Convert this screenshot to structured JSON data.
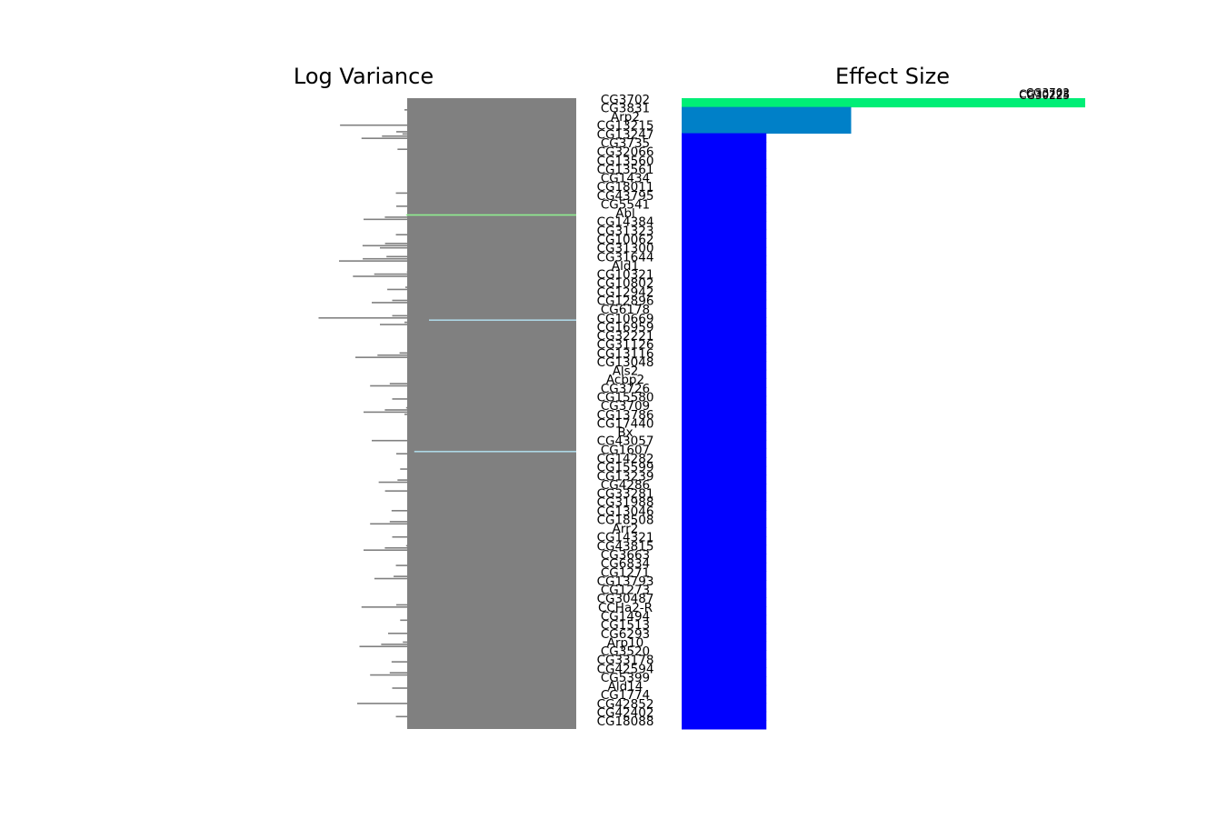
{
  "chart_data": [
    {
      "type": "bar",
      "orientation": "horizontal",
      "title": "Log Variance",
      "direction": "right-to-left",
      "axes_visible": false,
      "bar_color": "#808080",
      "highlight_colors": {
        "Abl": "#90ee90",
        "CG10669": "#add8e6",
        "CG1607": "#add8e6"
      }
    },
    {
      "type": "bar",
      "orientation": "horizontal",
      "title": "Effect Size",
      "direction": "left-to-right",
      "axes_visible": false,
      "top_annotations": [
        "CG3702",
        "CG30223",
        "CG30225"
      ],
      "segments": [
        {
          "color": "#00ee76",
          "value": 1.0,
          "rows": 1
        },
        {
          "color": "#0080c8",
          "value": 0.42,
          "rows": 3
        },
        {
          "color": "#0000ff",
          "value": 0.21,
          "rows": "rest"
        }
      ]
    }
  ],
  "genes": [
    "CG3702",
    "CG3831",
    "Arp2",
    "CG13215",
    "CG13247",
    "CG3735",
    "CG32066",
    "CG13560",
    "CG13561",
    "CG1434",
    "CG18011",
    "CG43795",
    "CG5541",
    "Abl",
    "CG14384",
    "CG31323",
    "CG10062",
    "CG31300",
    "CG31644",
    "Ald1",
    "CG10321",
    "CG10802",
    "CG12942",
    "CG12896",
    "CG6178",
    "CG10669",
    "CG16959",
    "CG32221",
    "CG31126",
    "CG13116",
    "CG13048",
    "Als2",
    "Acbp2",
    "CG3726",
    "CG15580",
    "CG3709",
    "CG13786",
    "CG17440",
    "Bx",
    "CG43057",
    "CG1607",
    "CG14282",
    "CG15599",
    "CG13239",
    "CG4286",
    "CG33281",
    "CG31988",
    "CG13046",
    "CG18508",
    "Arr2",
    "CG14321",
    "CG43815",
    "CG3663",
    "CG6834",
    "CG1271",
    "CG13793",
    "CG1273",
    "CG30487",
    "CCHa2-R",
    "CG1494",
    "CG1513",
    "CG6293",
    "Arp10",
    "CG3520",
    "CG33178",
    "CG42594",
    "CG5399",
    "Ald14",
    "CG1774",
    "CG42852",
    "CG42402",
    "CG18088"
  ],
  "log_variance": [
    0.46,
    0.42,
    0.41,
    0.55,
    0.5,
    0.46,
    0.4,
    0.37,
    0.4,
    0.35,
    0.42,
    0.39,
    0.44,
    0.52,
    0.38,
    0.42,
    0.55,
    0.48,
    0.58,
    0.46,
    0.52,
    0.44,
    0.41,
    0.5,
    0.45,
    0.6,
    0.36,
    0.43,
    0.4,
    0.54,
    0.42,
    0.35,
    0.48,
    0.38,
    0.45,
    0.52,
    0.4,
    0.36,
    0.43,
    0.5,
    0.44,
    0.38,
    0.41,
    0.46,
    0.55,
    0.4,
    0.37,
    0.43,
    0.48,
    0.39,
    0.45,
    0.52,
    0.36,
    0.42,
    0.47,
    0.4,
    0.38,
    0.44,
    0.5,
    0.41,
    0.35,
    0.46,
    0.53,
    0.39,
    0.43,
    0.48,
    0.37,
    0.45,
    0.4,
    0.51,
    0.42,
    0.38
  ],
  "effect_size": [
    1.0,
    0.42,
    0.42,
    0.42,
    0.21,
    0.21,
    0.21,
    0.21,
    0.21,
    0.21,
    0.21,
    0.21,
    0.21,
    0.21,
    0.21,
    0.21,
    0.21,
    0.21,
    0.21,
    0.21,
    0.21,
    0.21,
    0.21,
    0.21,
    0.21,
    0.21,
    0.21,
    0.21,
    0.21,
    0.21,
    0.21,
    0.21,
    0.21,
    0.21,
    0.21,
    0.21,
    0.21,
    0.21,
    0.21,
    0.21,
    0.21,
    0.21,
    0.21,
    0.21,
    0.21,
    0.21,
    0.21,
    0.21,
    0.21,
    0.21,
    0.21,
    0.21,
    0.21,
    0.21,
    0.21,
    0.21,
    0.21,
    0.21,
    0.21,
    0.21,
    0.21,
    0.21,
    0.21,
    0.21,
    0.21,
    0.21,
    0.21,
    0.21,
    0.21,
    0.21,
    0.21,
    0.21
  ]
}
